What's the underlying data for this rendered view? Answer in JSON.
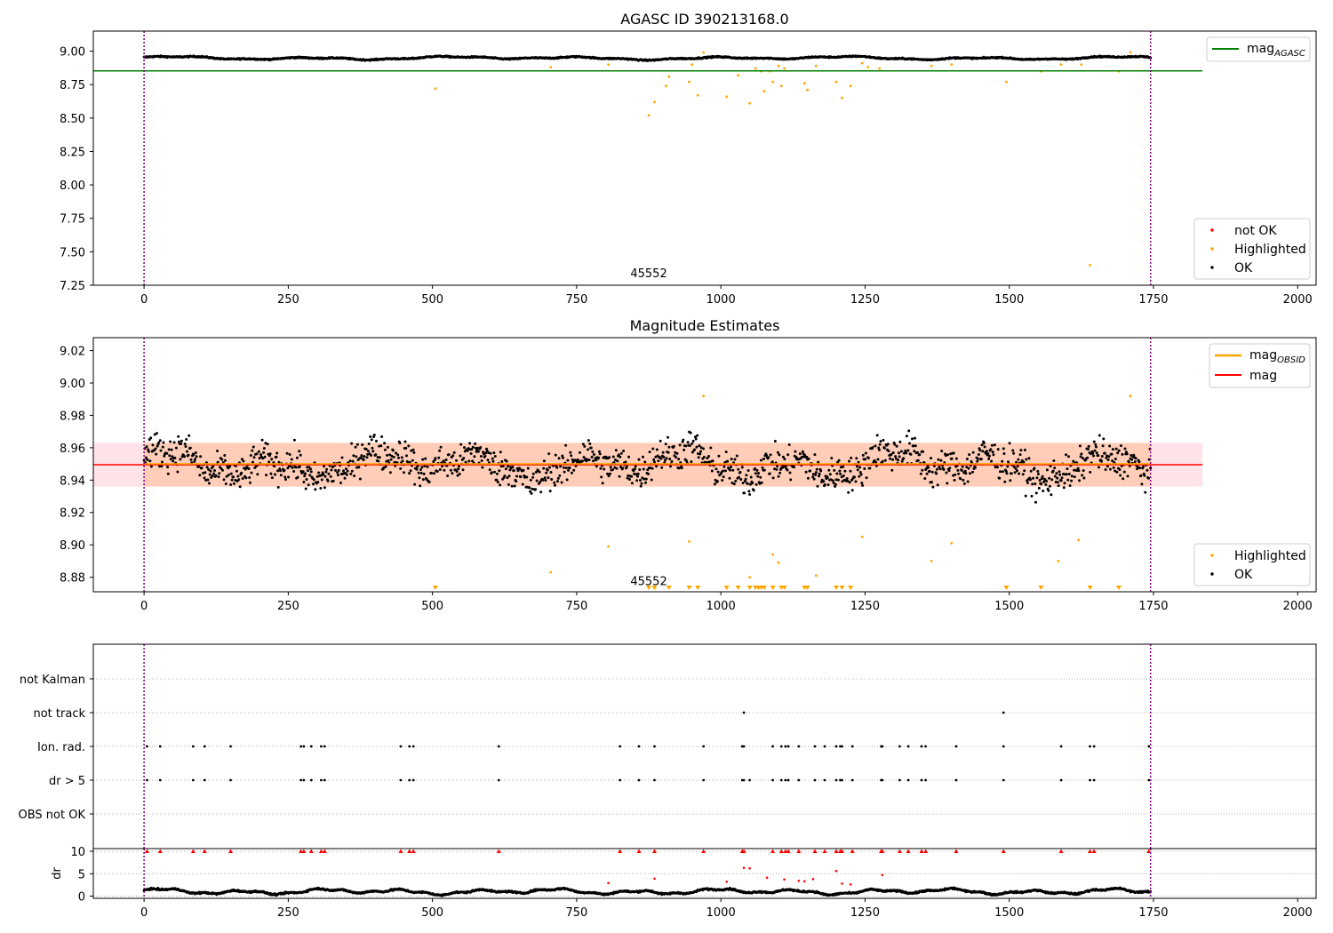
{
  "chart_data": [
    {
      "id": "agasc",
      "type": "scatter",
      "title": "AGASC ID 390213168.0",
      "xlim": [
        -88,
        2032
      ],
      "ylim": [
        7.25,
        9.15
      ],
      "xticks": [
        0,
        250,
        500,
        750,
        1000,
        1250,
        1500,
        1750,
        2000
      ],
      "yticks": [
        7.25,
        7.5,
        7.75,
        8.0,
        8.25,
        8.5,
        8.75,
        9.0
      ],
      "ytick_labels": [
        "7.25",
        "7.50",
        "7.75",
        "8.00",
        "8.25",
        "8.50",
        "8.75",
        "9.00"
      ],
      "vlines": [
        0,
        1745
      ],
      "vline_color": "#800080",
      "hline": {
        "y": 8.853,
        "x_from": -88,
        "x_to": 1835,
        "color": "#008000",
        "label": "mag",
        "label_sub": "AGASC"
      },
      "annotation": {
        "text": "45552",
        "x": 875,
        "y": 7.31
      },
      "legend_top": [
        {
          "label": "mag",
          "sub": "AGASC",
          "color": "#008000"
        }
      ],
      "legend_bottom": [
        {
          "label": "not OK",
          "color": "#ff0000"
        },
        {
          "label": "Highlighted",
          "color": "#ffa500"
        },
        {
          "label": "OK",
          "color": "#000000"
        }
      ],
      "ok_trend": {
        "x_range": [
          0,
          1745
        ],
        "base": 8.948,
        "amplitude": 0.014,
        "count": 1750,
        "color": "#000000"
      },
      "highlighted": {
        "color": "#ffa500",
        "x": [
          505,
          705,
          805,
          875,
          885,
          905,
          910,
          945,
          950,
          960,
          970,
          1010,
          1030,
          1050,
          1060,
          1070,
          1075,
          1085,
          1090,
          1100,
          1105,
          1110,
          1145,
          1150,
          1165,
          1200,
          1210,
          1225,
          1245,
          1255,
          1275,
          1365,
          1400,
          1495,
          1555,
          1590,
          1625,
          1640,
          1690,
          1710
        ],
        "y": [
          8.72,
          8.88,
          8.9,
          8.52,
          8.62,
          8.74,
          8.81,
          8.77,
          8.9,
          8.67,
          8.99,
          8.66,
          8.82,
          8.61,
          8.87,
          8.85,
          8.7,
          8.85,
          8.77,
          8.89,
          8.74,
          8.87,
          8.76,
          8.71,
          8.89,
          8.77,
          8.65,
          8.74,
          8.91,
          8.88,
          8.87,
          8.89,
          8.9,
          8.77,
          8.85,
          8.9,
          8.9,
          7.4,
          8.85,
          8.99
        ]
      }
    },
    {
      "id": "estimates",
      "type": "scatter",
      "title": "Magnitude Estimates",
      "xlim": [
        -88,
        2032
      ],
      "ylim": [
        8.871,
        9.028
      ],
      "xticks": [
        0,
        250,
        500,
        750,
        1000,
        1250,
        1500,
        1750,
        2000
      ],
      "yticks": [
        8.88,
        8.9,
        8.92,
        8.94,
        8.96,
        8.98,
        9.0,
        9.02
      ],
      "ytick_labels": [
        "8.88",
        "8.90",
        "8.92",
        "8.94",
        "8.96",
        "8.98",
        "9.00",
        "9.02"
      ],
      "vlines": [
        0,
        1745
      ],
      "vline_color": "#800080",
      "mag_line": {
        "y": 8.9495,
        "x_from": -88,
        "x_to": 1835,
        "color": "#ff0000",
        "band": [
          8.936,
          8.963
        ],
        "band_color": "#ffc0cb"
      },
      "mag_obsid": {
        "y": 8.9495,
        "x_from": 0,
        "x_to": 1745,
        "color": "#ffa500",
        "band": [
          8.936,
          8.963
        ],
        "band_color": "#ffb27f"
      },
      "annotation": {
        "text": "45552",
        "x": 875,
        "y": 8.875
      },
      "legend_top": [
        {
          "label": "mag",
          "sub": "OBSID",
          "color": "#ffa500"
        },
        {
          "label": "mag",
          "sub": "",
          "color": "#ff0000"
        }
      ],
      "legend_bottom": [
        {
          "label": "Highlighted",
          "color": "#ffa500"
        },
        {
          "label": "OK",
          "color": "#000000"
        }
      ],
      "ok_trend": {
        "x_range": [
          0,
          1745
        ],
        "base": 8.9495,
        "amplitude": 0.011,
        "scatter": 0.009,
        "count": 1500,
        "color": "#000000"
      },
      "highlighted": {
        "color": "#ffa500",
        "x": [
          705,
          805,
          945,
          970,
          1050,
          1090,
          1100,
          1165,
          1245,
          1400,
          1365,
          1585,
          1620,
          1710
        ],
        "y": [
          8.883,
          8.899,
          8.902,
          8.992,
          8.88,
          8.894,
          8.889,
          8.881,
          8.905,
          8.901,
          8.89,
          8.89,
          8.903,
          8.992
        ]
      },
      "clipped_low": {
        "color": "#ffa500",
        "x": [
          505,
          875,
          885,
          910,
          945,
          960,
          1010,
          1030,
          1050,
          1060,
          1065,
          1070,
          1075,
          1090,
          1105,
          1110,
          1145,
          1150,
          1200,
          1210,
          1225,
          1495,
          1555,
          1640,
          1690
        ]
      }
    },
    {
      "id": "flags",
      "type": "scatter",
      "categories": [
        "not Kalman",
        "not track",
        "Ion. rad.",
        "dr > 5",
        "OBS not OK"
      ],
      "xlim": [
        -88,
        2032
      ],
      "vlines": [
        0,
        1745
      ],
      "vline_color": "#800080",
      "flag_points": {
        "not track": [
          1040,
          1490
        ],
        "Ion. rad.": [
          5,
          28,
          85,
          105,
          150,
          272,
          277,
          290,
          307,
          313,
          445,
          460,
          467,
          615,
          825,
          858,
          885,
          970,
          1037,
          1040,
          1090,
          1105,
          1112,
          1117,
          1135,
          1163,
          1180,
          1200,
          1207,
          1210,
          1228,
          1278,
          1280,
          1310,
          1325,
          1348,
          1355,
          1408,
          1490,
          1590,
          1640,
          1647,
          1742
        ],
        "dr > 5": [
          5,
          28,
          85,
          105,
          150,
          272,
          277,
          290,
          307,
          313,
          445,
          460,
          467,
          615,
          825,
          858,
          885,
          970,
          1037,
          1040,
          1050,
          1090,
          1105,
          1112,
          1117,
          1135,
          1163,
          1180,
          1200,
          1207,
          1210,
          1228,
          1278,
          1280,
          1310,
          1325,
          1348,
          1355,
          1408,
          1490,
          1590,
          1640,
          1647,
          1742
        ]
      }
    },
    {
      "id": "dr",
      "type": "scatter",
      "ylabel": "dr",
      "xlim": [
        -88,
        2032
      ],
      "ylim": [
        -0.5,
        10.6
      ],
      "xticks": [
        0,
        250,
        500,
        750,
        1000,
        1250,
        1500,
        1750,
        2000
      ],
      "yticks": [
        0,
        5,
        10
      ],
      "ytick_labels": [
        "0",
        "5",
        "10"
      ],
      "vlines": [
        0,
        1745
      ],
      "vline_color": "#800080",
      "ok_trend": {
        "x_range": [
          0,
          1745
        ],
        "base": 1.0,
        "amplitude": 0.7,
        "count": 1750,
        "color": "#000000"
      },
      "outliers": {
        "color": "#ff0000",
        "x": [
          805,
          885,
          1010,
          1040,
          1050,
          1080,
          1110,
          1135,
          1145,
          1160,
          1200,
          1210,
          1225,
          1280
        ],
        "y": [
          2.9,
          3.9,
          3.2,
          6.3,
          6.2,
          4.1,
          3.7,
          3.4,
          3.3,
          3.8,
          5.6,
          2.8,
          2.6,
          4.7
        ]
      },
      "capped_x": [
        5,
        28,
        85,
        105,
        150,
        272,
        277,
        290,
        307,
        313,
        445,
        460,
        467,
        615,
        825,
        858,
        885,
        970,
        1037,
        1040,
        1090,
        1105,
        1112,
        1117,
        1135,
        1163,
        1180,
        1200,
        1207,
        1210,
        1228,
        1278,
        1280,
        1310,
        1325,
        1348,
        1355,
        1408,
        1490,
        1590,
        1640,
        1647,
        1742
      ]
    }
  ]
}
